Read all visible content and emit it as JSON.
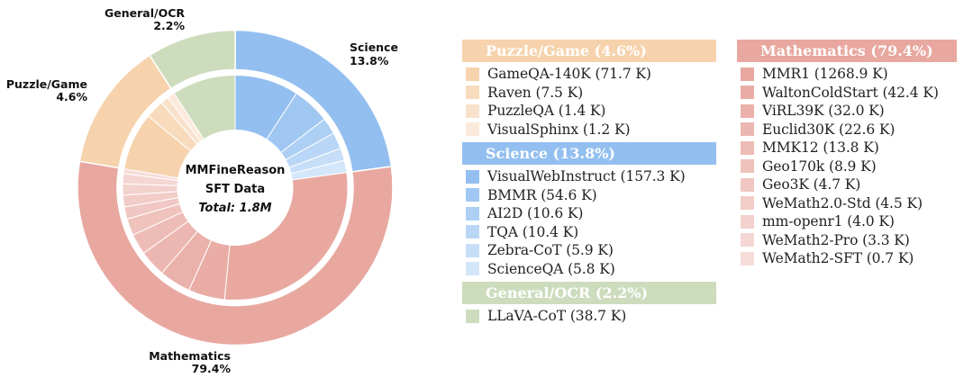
{
  "chart_data": {
    "type": "pie",
    "subtype": "nested-donut",
    "angle_scale": "sqrt",
    "center_text": {
      "line1": "MMFineReason",
      "line2": "SFT Data",
      "line3": "Total: 1.8M"
    },
    "categories": [
      {
        "key": "science",
        "name": "Science",
        "percent": 13.8,
        "percent_label": "13.8%",
        "header": "Science (13.8%)",
        "color": "#93bff0",
        "light": "#d4e6fa",
        "items": [
          {
            "name": "VisualWebInstruct",
            "value_k": 157.3,
            "label": "VisualWebInstruct (157.3 K)"
          },
          {
            "name": "BMMR",
            "value_k": 54.6,
            "label": "BMMR (54.6 K)"
          },
          {
            "name": "AI2D",
            "value_k": 10.6,
            "label": "AI2D (10.6 K)"
          },
          {
            "name": "TQA",
            "value_k": 10.4,
            "label": "TQA (10.4 K)"
          },
          {
            "name": "Zebra-CoT",
            "value_k": 5.9,
            "label": "Zebra-CoT (5.9 K)"
          },
          {
            "name": "ScienceQA",
            "value_k": 5.8,
            "label": "ScienceQA (5.8 K)"
          }
        ]
      },
      {
        "key": "mathematics",
        "name": "Mathematics",
        "percent": 79.4,
        "percent_label": "79.4%",
        "header": "Mathematics (79.4%)",
        "color": "#e8a8a0",
        "light": "#f6dbd8",
        "items": [
          {
            "name": "MMR1",
            "value_k": 1268.9,
            "label": "MMR1 (1268.9 K)"
          },
          {
            "name": "WaltonColdStart",
            "value_k": 42.4,
            "label": "WaltonColdStart (42.4 K)"
          },
          {
            "name": "ViRL39K",
            "value_k": 32.0,
            "label": "ViRL39K (32.0 K)"
          },
          {
            "name": "Euclid30K",
            "value_k": 22.6,
            "label": "Euclid30K (22.6 K)"
          },
          {
            "name": "MMK12",
            "value_k": 13.8,
            "label": "MMK12 (13.8 K)"
          },
          {
            "name": "Geo170k",
            "value_k": 8.9,
            "label": "Geo170k (8.9 K)"
          },
          {
            "name": "Geo3K",
            "value_k": 4.7,
            "label": "Geo3K (4.7 K)"
          },
          {
            "name": "WeMath2.0-Std",
            "value_k": 4.5,
            "label": "WeMath2.0-Std (4.5 K)"
          },
          {
            "name": "mm-openr1",
            "value_k": 4.0,
            "label": "mm-openr1 (4.0 K)"
          },
          {
            "name": "WeMath2-Pro",
            "value_k": 3.3,
            "label": "WeMath2-Pro (3.3 K)"
          },
          {
            "name": "WeMath2-SFT",
            "value_k": 0.7,
            "label": "WeMath2-SFT (0.7 K)"
          }
        ]
      },
      {
        "key": "puzzle",
        "name": "Puzzle/Game",
        "percent": 4.6,
        "percent_label": "4.6%",
        "header": "Puzzle/Game (4.6%)",
        "color": "#f6d3ad",
        "light": "#fbeadc",
        "items": [
          {
            "name": "GameQA-140K",
            "value_k": 71.7,
            "label": "GameQA-140K (71.7 K)"
          },
          {
            "name": "Raven",
            "value_k": 7.5,
            "label": "Raven (7.5 K)"
          },
          {
            "name": "PuzzleQA",
            "value_k": 1.4,
            "label": "PuzzleQA (1.4 K)"
          },
          {
            "name": "VisualSphinx",
            "value_k": 1.2,
            "label": "VisualSphinx (1.2 K)"
          }
        ]
      },
      {
        "key": "general",
        "name": "General/OCR",
        "percent": 2.2,
        "percent_label": "2.2%",
        "header": "General/OCR (2.2%)",
        "color": "#cddcbd",
        "light": "#cddcbd",
        "items": [
          {
            "name": "LLaVA-CoT",
            "value_k": 38.7,
            "label": "LLaVA-CoT (38.7 K)"
          }
        ]
      }
    ],
    "legend_placement": "right"
  }
}
